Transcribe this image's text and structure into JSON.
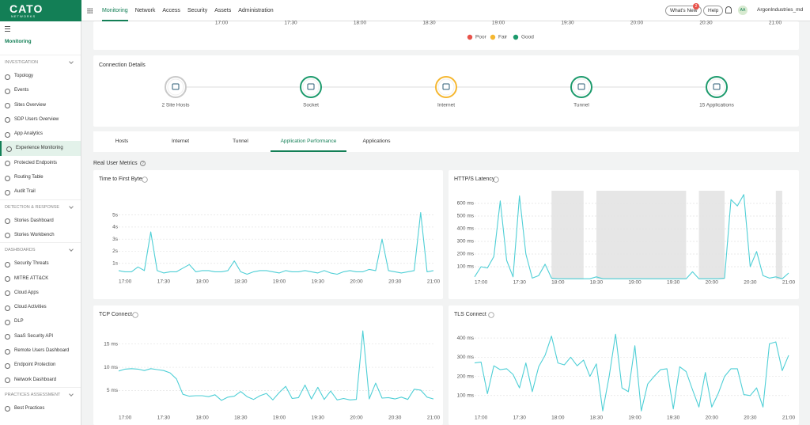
{
  "topnav": {
    "logo": "CATO",
    "logo_sub": "NETWORKS",
    "items": [
      "Monitoring",
      "Network",
      "Access",
      "Security",
      "Assets",
      "Administration"
    ],
    "active": 0,
    "whats_new": "What's New",
    "badge": "2",
    "help": "Help",
    "avatar": "AA",
    "account": "ArgonIndustries_md"
  },
  "sidebar": {
    "title": "Monitoring",
    "sections": [
      {
        "title": "INVESTIGATION",
        "items": [
          "Topology",
          "Events",
          "Sites Overview",
          "SDP Users Overview",
          "App Analytics",
          "Experience Monitoring",
          "Protected Endpoints",
          "Routing Table",
          "Audit Trail"
        ]
      },
      {
        "title": "DETECTION & RESPONSE",
        "items": [
          "Stories Dashboard",
          "Stories Workbench"
        ]
      },
      {
        "title": "DASHBOARDS",
        "items": [
          "Security Threats",
          "MITRE ATT&CK",
          "Cloud Apps",
          "Cloud Activities",
          "DLP",
          "SaaS Security API",
          "Remote Users Dashboard",
          "Endpoint Protection",
          "Network Dashboard"
        ]
      },
      {
        "title": "PRACTICES ASSESSMENT",
        "items": [
          "Best Practices"
        ]
      }
    ],
    "active_item": "Experience Monitoring"
  },
  "quality_chart": {
    "xticks": [
      "17:00",
      "17:30",
      "18:00",
      "18:30",
      "19:00",
      "19:30",
      "20:00",
      "20:30",
      "21:00"
    ],
    "legend": [
      {
        "name": "Poor",
        "color": "#e8524a"
      },
      {
        "name": "Fair",
        "color": "#f5b731"
      },
      {
        "name": "Good",
        "color": "#1c9a6c"
      }
    ]
  },
  "connection_details": {
    "title": "Connection Details",
    "nodes": [
      {
        "label": "2 Site Hosts",
        "color": "#c9c9c9"
      },
      {
        "label": "Socket",
        "color": "#1c9a6c"
      },
      {
        "label": "Internet",
        "color": "#f5b731"
      },
      {
        "label": "Tunnel",
        "color": "#1c9a6c"
      },
      {
        "label": "15 Applications",
        "color": "#1c9a6c"
      }
    ]
  },
  "tabs": {
    "items": [
      "Hosts",
      "Internet",
      "Tunnel",
      "Application Performance",
      "Applications"
    ],
    "active": 3
  },
  "section_title": "Real User Metrics",
  "chart_data": [
    {
      "type": "line",
      "title": "Time to First Byte",
      "color": "#4fcfd6",
      "x": [
        "16:55",
        "17:00",
        "17:05",
        "17:10",
        "17:15",
        "17:20",
        "17:25",
        "17:30",
        "17:35",
        "17:40",
        "17:45",
        "17:50",
        "17:55",
        "18:00",
        "18:05",
        "18:10",
        "18:15",
        "18:20",
        "18:25",
        "18:30",
        "18:35",
        "18:40",
        "18:45",
        "18:50",
        "18:55",
        "19:00",
        "19:05",
        "19:10",
        "19:15",
        "19:20",
        "19:25",
        "19:30",
        "19:35",
        "19:40",
        "19:45",
        "19:50",
        "19:55",
        "20:00",
        "20:05",
        "20:10",
        "20:15",
        "20:20",
        "20:25",
        "20:30",
        "20:35",
        "20:40",
        "20:45",
        "20:50",
        "20:55",
        "21:00"
      ],
      "values": [
        0.4,
        0.3,
        0.3,
        0.7,
        0.4,
        3.6,
        0.4,
        0.2,
        0.3,
        0.3,
        0.6,
        0.9,
        0.3,
        0.4,
        0.4,
        0.3,
        0.3,
        0.4,
        1.2,
        0.3,
        0.1,
        0.3,
        0.4,
        0.4,
        0.3,
        0.2,
        0.4,
        0.3,
        0.3,
        0.4,
        0.3,
        0.2,
        0.4,
        0.2,
        0.1,
        0.3,
        0.4,
        0.3,
        0.3,
        0.5,
        0.4,
        3.0,
        0.4,
        0.3,
        0.2,
        0.3,
        0.4,
        5.2,
        0.3,
        0.4
      ],
      "ylim": [
        0,
        5.5
      ],
      "yticks": [
        {
          "value": 1,
          "label": "1s"
        },
        {
          "value": 2,
          "label": "2s"
        },
        {
          "value": 3,
          "label": "3s"
        },
        {
          "value": 4,
          "label": "4s"
        },
        {
          "value": 5,
          "label": "5s"
        }
      ],
      "xticks": [
        "17:00",
        "17:30",
        "18:00",
        "18:30",
        "19:00",
        "19:30",
        "20:00",
        "20:30",
        "21:00"
      ],
      "grid": true
    },
    {
      "type": "line",
      "title": "HTTP/S Latency",
      "color": "#4fcfd6",
      "x": [
        "16:55",
        "17:00",
        "17:05",
        "17:10",
        "17:15",
        "17:20",
        "17:25",
        "17:30",
        "17:35",
        "17:40",
        "17:45",
        "17:50",
        "17:55",
        "18:00",
        "18:05",
        "18:10",
        "18:15",
        "18:20",
        "18:25",
        "18:30",
        "18:35",
        "18:40",
        "18:45",
        "18:50",
        "18:55",
        "19:00",
        "19:05",
        "19:10",
        "19:15",
        "19:20",
        "19:25",
        "19:30",
        "19:35",
        "19:40",
        "19:45",
        "19:50",
        "19:55",
        "20:00",
        "20:05",
        "20:10",
        "20:15",
        "20:20",
        "20:25",
        "20:30",
        "20:35",
        "20:40",
        "20:45",
        "20:50",
        "20:55",
        "21:00"
      ],
      "values": [
        20,
        100,
        90,
        180,
        620,
        150,
        20,
        660,
        200,
        10,
        30,
        120,
        10,
        5,
        5,
        5,
        5,
        5,
        5,
        20,
        5,
        5,
        5,
        5,
        5,
        5,
        5,
        5,
        5,
        5,
        5,
        5,
        5,
        5,
        60,
        5,
        5,
        5,
        5,
        10,
        630,
        580,
        670,
        100,
        220,
        30,
        10,
        20,
        5,
        50
      ],
      "ylim": [
        0,
        700
      ],
      "yticks": [
        {
          "value": 100,
          "label": "100 ms"
        },
        {
          "value": 200,
          "label": "200 ms"
        },
        {
          "value": 300,
          "label": "300 ms"
        },
        {
          "value": 400,
          "label": "400 ms"
        },
        {
          "value": 500,
          "label": "500 ms"
        },
        {
          "value": 600,
          "label": "600 ms"
        }
      ],
      "xticks": [
        "17:00",
        "17:30",
        "18:00",
        "18:30",
        "19:00",
        "19:30",
        "20:00",
        "20:30",
        "21:00"
      ],
      "grid": true,
      "shaded_ranges": [
        [
          "17:55",
          "18:20"
        ],
        [
          "18:30",
          "19:40"
        ],
        [
          "19:50",
          "20:10"
        ],
        [
          "20:50",
          "20:55"
        ]
      ],
      "shade_color": "#e6e6e6"
    },
    {
      "type": "line",
      "title": "TCP Connect",
      "color": "#4fcfd6",
      "x": [
        "16:55",
        "17:00",
        "17:05",
        "17:10",
        "17:15",
        "17:20",
        "17:25",
        "17:30",
        "17:35",
        "17:40",
        "17:45",
        "17:50",
        "17:55",
        "18:00",
        "18:05",
        "18:10",
        "18:15",
        "18:20",
        "18:25",
        "18:30",
        "18:35",
        "18:40",
        "18:45",
        "18:50",
        "18:55",
        "19:00",
        "19:05",
        "19:10",
        "19:15",
        "19:20",
        "19:25",
        "19:30",
        "19:35",
        "19:40",
        "19:45",
        "19:50",
        "19:55",
        "20:00",
        "20:05",
        "20:10",
        "20:15",
        "20:20",
        "20:25",
        "20:30",
        "20:35",
        "20:40",
        "20:45",
        "20:50",
        "20:55",
        "21:00"
      ],
      "values": [
        9.2,
        9.6,
        9.7,
        9.6,
        9.3,
        9.7,
        9.5,
        9.3,
        8.8,
        7.5,
        4.2,
        3.8,
        3.9,
        3.9,
        3.7,
        4.1,
        2.9,
        3.6,
        3.8,
        4.8,
        3.7,
        3.1,
        3.9,
        4.4,
        3.0,
        4.6,
        5.9,
        3.3,
        3.5,
        6.2,
        3.2,
        5.7,
        3.1,
        4.9,
        3.0,
        3.3,
        3.0,
        3.1,
        17.8,
        3.2,
        6.6,
        3.4,
        3.5,
        3.2,
        3.6,
        3.1,
        5.3,
        5.1,
        3.6,
        3.2
      ],
      "ylim": [
        0,
        19
      ],
      "yticks": [
        {
          "value": 5,
          "label": "5 ms"
        },
        {
          "value": 10,
          "label": "10 ms"
        },
        {
          "value": 15,
          "label": "15 ms"
        }
      ],
      "xticks": [
        "17:00",
        "17:30",
        "18:00",
        "18:30",
        "19:00",
        "19:30",
        "20:00",
        "20:30",
        "21:00"
      ],
      "grid": true
    },
    {
      "type": "line",
      "title": "TLS Connect",
      "color": "#4fcfd6",
      "x": [
        "16:55",
        "17:00",
        "17:05",
        "17:10",
        "17:15",
        "17:20",
        "17:25",
        "17:30",
        "17:35",
        "17:40",
        "17:45",
        "17:50",
        "17:55",
        "18:00",
        "18:05",
        "18:10",
        "18:15",
        "18:20",
        "18:25",
        "18:30",
        "18:35",
        "18:40",
        "18:45",
        "18:50",
        "18:55",
        "19:00",
        "19:05",
        "19:10",
        "19:15",
        "19:20",
        "19:25",
        "19:30",
        "19:35",
        "19:40",
        "19:45",
        "19:50",
        "19:55",
        "20:00",
        "20:05",
        "20:10",
        "20:15",
        "20:20",
        "20:25",
        "20:30",
        "20:35",
        "20:40",
        "20:45",
        "20:50",
        "20:55",
        "21:00"
      ],
      "values": [
        270,
        275,
        110,
        255,
        235,
        240,
        210,
        140,
        270,
        120,
        250,
        310,
        410,
        270,
        260,
        300,
        255,
        285,
        200,
        265,
        20,
        200,
        420,
        140,
        120,
        360,
        20,
        160,
        200,
        235,
        240,
        30,
        250,
        225,
        130,
        40,
        220,
        40,
        110,
        200,
        240,
        240,
        105,
        100,
        140,
        40,
        370,
        380,
        230,
        310
      ],
      "ylim": [
        0,
        450
      ],
      "yticks": [
        {
          "value": 100,
          "label": "100 ms"
        },
        {
          "value": 200,
          "label": "200 ms"
        },
        {
          "value": 300,
          "label": "300 ms"
        },
        {
          "value": 400,
          "label": "400 ms"
        }
      ],
      "xticks": [
        "17:00",
        "17:30",
        "18:00",
        "18:30",
        "19:00",
        "19:30",
        "20:00",
        "20:30",
        "21:00"
      ],
      "grid": true
    }
  ]
}
